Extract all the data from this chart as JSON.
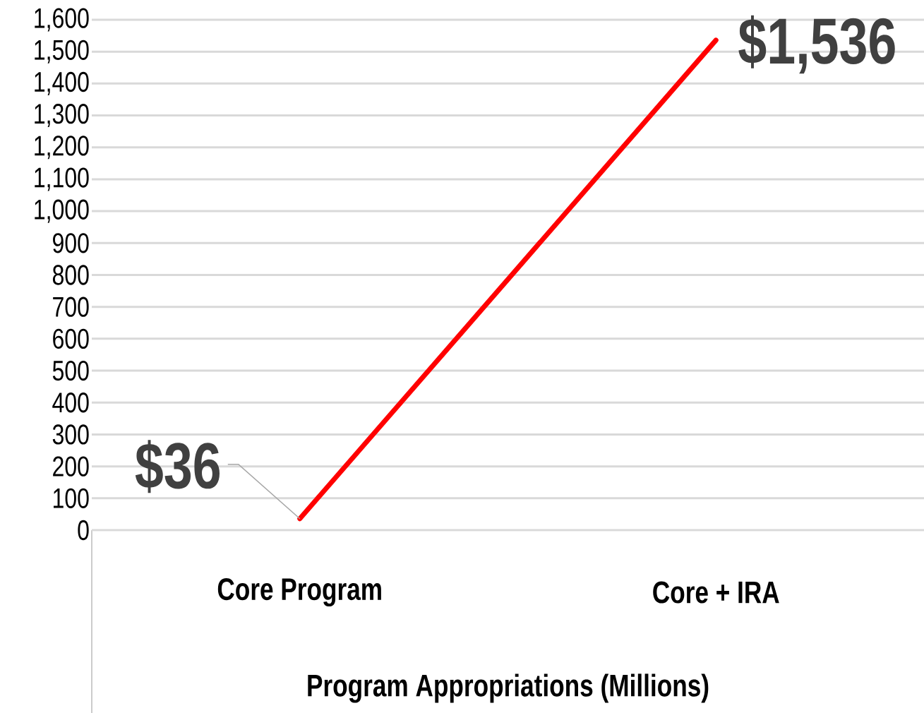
{
  "chart_data": {
    "type": "line",
    "xlabel": "Program Appropriations (Millions)",
    "categories": [
      "Core Program",
      "Core + IRA"
    ],
    "series": [
      {
        "color": "#ff0000",
        "values": [
          36,
          1536
        ],
        "value_labels": [
          "$36",
          "$1,536"
        ]
      }
    ],
    "ylim": [
      0,
      1600
    ],
    "yticks": [
      0,
      100,
      200,
      300,
      400,
      500,
      600,
      700,
      800,
      900,
      {
        "value": 1000,
        "label": "1,000"
      },
      {
        "value": 1100,
        "label": "1,100"
      },
      {
        "value": 1200,
        "label": "1,200"
      },
      {
        "value": 1300,
        "label": "1,300"
      },
      {
        "value": 1400,
        "label": "1,400"
      },
      {
        "value": 1500,
        "label": "1,500"
      },
      {
        "value": 1600,
        "label": "1,600"
      }
    ],
    "grid": "y"
  }
}
